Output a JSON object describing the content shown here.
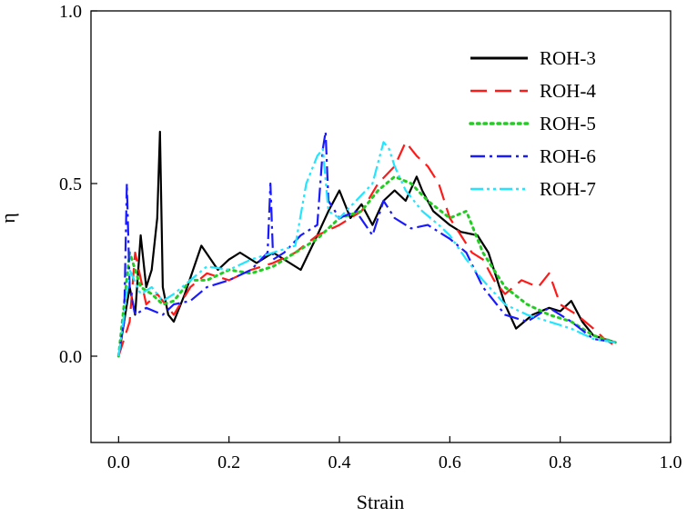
{
  "chart_data": {
    "type": "line",
    "title": "",
    "xlabel": "Strain",
    "ylabel": "η",
    "xlim": [
      -0.05,
      1.0
    ],
    "ylim": [
      -0.25,
      1.0
    ],
    "xticks": [
      "0.0",
      "0.2",
      "0.4",
      "0.6",
      "0.8",
      "1.0"
    ],
    "xtick_values": [
      0.0,
      0.2,
      0.4,
      0.6,
      0.8,
      1.0
    ],
    "yticks": [
      "0.0",
      "0.5",
      "1.0"
    ],
    "ytick_values": [
      0.0,
      0.5,
      1.0
    ],
    "grid": false,
    "legend_position": "top-right",
    "series": [
      {
        "name": "ROH-3",
        "color": "#000000",
        "style": "solid",
        "x": [
          0.0,
          0.01,
          0.02,
          0.03,
          0.04,
          0.05,
          0.06,
          0.07,
          0.075,
          0.08,
          0.09,
          0.1,
          0.12,
          0.15,
          0.18,
          0.2,
          0.22,
          0.25,
          0.28,
          0.3,
          0.33,
          0.36,
          0.38,
          0.4,
          0.42,
          0.44,
          0.46,
          0.48,
          0.5,
          0.52,
          0.54,
          0.55,
          0.57,
          0.6,
          0.62,
          0.65,
          0.67,
          0.7,
          0.72,
          0.75,
          0.78,
          0.8,
          0.82,
          0.84,
          0.86,
          0.88,
          0.9
        ],
        "values": [
          0.0,
          0.1,
          0.2,
          0.12,
          0.35,
          0.2,
          0.25,
          0.4,
          0.65,
          0.2,
          0.12,
          0.1,
          0.18,
          0.32,
          0.25,
          0.28,
          0.3,
          0.27,
          0.3,
          0.28,
          0.25,
          0.35,
          0.42,
          0.48,
          0.4,
          0.44,
          0.38,
          0.45,
          0.48,
          0.45,
          0.52,
          0.48,
          0.42,
          0.38,
          0.36,
          0.35,
          0.3,
          0.15,
          0.08,
          0.12,
          0.14,
          0.13,
          0.16,
          0.1,
          0.06,
          0.05,
          0.04
        ]
      },
      {
        "name": "ROH-4",
        "color": "#ff1a1a",
        "style": "dash",
        "x": [
          0.0,
          0.01,
          0.02,
          0.03,
          0.05,
          0.07,
          0.1,
          0.13,
          0.16,
          0.2,
          0.24,
          0.28,
          0.32,
          0.36,
          0.4,
          0.44,
          0.47,
          0.5,
          0.52,
          0.54,
          0.56,
          0.58,
          0.6,
          0.62,
          0.64,
          0.66,
          0.68,
          0.7,
          0.73,
          0.76,
          0.78,
          0.8,
          0.83,
          0.86,
          0.88,
          0.9
        ],
        "values": [
          0.0,
          0.05,
          0.1,
          0.3,
          0.15,
          0.18,
          0.12,
          0.2,
          0.24,
          0.22,
          0.25,
          0.27,
          0.3,
          0.35,
          0.38,
          0.42,
          0.5,
          0.55,
          0.62,
          0.58,
          0.55,
          0.5,
          0.4,
          0.35,
          0.3,
          0.28,
          0.22,
          0.18,
          0.22,
          0.2,
          0.24,
          0.15,
          0.12,
          0.08,
          0.05,
          0.03
        ]
      },
      {
        "name": "ROH-5",
        "color": "#22cc22",
        "style": "dot",
        "x": [
          0.0,
          0.01,
          0.02,
          0.04,
          0.06,
          0.08,
          0.1,
          0.13,
          0.16,
          0.2,
          0.24,
          0.28,
          0.32,
          0.36,
          0.4,
          0.44,
          0.47,
          0.5,
          0.53,
          0.56,
          0.6,
          0.63,
          0.66,
          0.7,
          0.74,
          0.78,
          0.82,
          0.86,
          0.9
        ],
        "values": [
          0.0,
          0.15,
          0.3,
          0.2,
          0.18,
          0.15,
          0.16,
          0.22,
          0.22,
          0.25,
          0.24,
          0.26,
          0.3,
          0.34,
          0.4,
          0.42,
          0.48,
          0.52,
          0.5,
          0.45,
          0.4,
          0.42,
          0.3,
          0.2,
          0.15,
          0.12,
          0.1,
          0.06,
          0.04
        ]
      },
      {
        "name": "ROH-6",
        "color": "#1a1aff",
        "style": "dashdot",
        "x": [
          0.0,
          0.01,
          0.015,
          0.02,
          0.03,
          0.05,
          0.08,
          0.1,
          0.13,
          0.16,
          0.2,
          0.24,
          0.27,
          0.275,
          0.28,
          0.3,
          0.33,
          0.36,
          0.37,
          0.375,
          0.38,
          0.4,
          0.43,
          0.46,
          0.48,
          0.5,
          0.53,
          0.56,
          0.6,
          0.63,
          0.66,
          0.7,
          0.74,
          0.78,
          0.82,
          0.86,
          0.9
        ],
        "values": [
          0.0,
          0.1,
          0.5,
          0.2,
          0.12,
          0.14,
          0.12,
          0.15,
          0.16,
          0.2,
          0.22,
          0.25,
          0.3,
          0.5,
          0.28,
          0.3,
          0.35,
          0.38,
          0.6,
          0.65,
          0.45,
          0.4,
          0.42,
          0.35,
          0.45,
          0.4,
          0.37,
          0.38,
          0.34,
          0.3,
          0.2,
          0.12,
          0.1,
          0.14,
          0.1,
          0.05,
          0.04
        ]
      },
      {
        "name": "ROH-7",
        "color": "#22e5ff",
        "style": "dashdotdot",
        "x": [
          0.0,
          0.01,
          0.02,
          0.04,
          0.06,
          0.08,
          0.1,
          0.13,
          0.16,
          0.2,
          0.24,
          0.28,
          0.32,
          0.34,
          0.36,
          0.37,
          0.38,
          0.4,
          0.43,
          0.46,
          0.48,
          0.49,
          0.5,
          0.52,
          0.55,
          0.58,
          0.6,
          0.63,
          0.66,
          0.7,
          0.74,
          0.78,
          0.82,
          0.86,
          0.9
        ],
        "values": [
          0.0,
          0.12,
          0.25,
          0.18,
          0.2,
          0.16,
          0.18,
          0.22,
          0.26,
          0.25,
          0.28,
          0.3,
          0.32,
          0.5,
          0.58,
          0.6,
          0.42,
          0.4,
          0.45,
          0.5,
          0.62,
          0.6,
          0.55,
          0.48,
          0.42,
          0.38,
          0.35,
          0.28,
          0.22,
          0.15,
          0.12,
          0.1,
          0.08,
          0.05,
          0.04
        ]
      }
    ]
  }
}
